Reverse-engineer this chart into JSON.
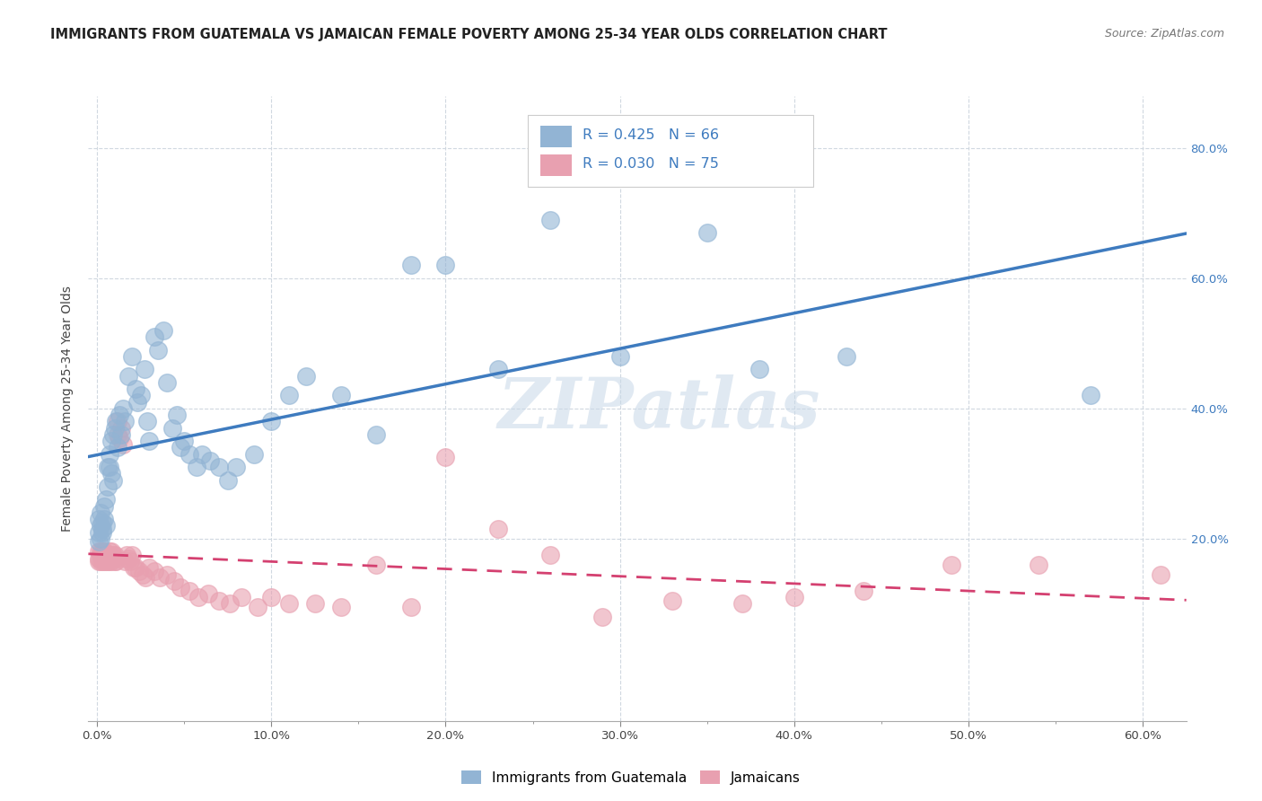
{
  "title": "IMMIGRANTS FROM GUATEMALA VS JAMAICAN FEMALE POVERTY AMONG 25-34 YEAR OLDS CORRELATION CHART",
  "source": "Source: ZipAtlas.com",
  "xlabel_ticks": [
    "0.0%",
    "",
    "10.0%",
    "",
    "20.0%",
    "",
    "30.0%",
    "",
    "40.0%",
    "",
    "50.0%",
    "",
    "60.0%"
  ],
  "xlabel_vals": [
    0.0,
    0.05,
    0.1,
    0.15,
    0.2,
    0.25,
    0.3,
    0.35,
    0.4,
    0.45,
    0.5,
    0.55,
    0.6
  ],
  "ylabel_ticks": [
    "20.0%",
    "40.0%",
    "60.0%",
    "80.0%"
  ],
  "ylabel_vals": [
    0.2,
    0.4,
    0.6,
    0.8
  ],
  "xlim": [
    -0.005,
    0.625
  ],
  "ylim": [
    -0.08,
    0.88
  ],
  "legend_labels": [
    "Immigrants from Guatemala",
    "Jamaicans"
  ],
  "r_guatemala": 0.425,
  "n_guatemala": 66,
  "r_jamaican": 0.03,
  "n_jamaican": 75,
  "blue_color": "#92b4d4",
  "pink_color": "#e8a0b0",
  "trendline_blue": "#3e7bbf",
  "trendline_pink": "#d44070",
  "watermark_color": "#c8d8e8",
  "background_color": "#ffffff",
  "grid_color": "#d0d8e0",
  "title_fontsize": 10.5,
  "source_fontsize": 9,
  "axis_label_fontsize": 10,
  "tick_fontsize": 9.5,
  "guatemala_x": [
    0.001,
    0.001,
    0.001,
    0.002,
    0.002,
    0.002,
    0.003,
    0.003,
    0.003,
    0.004,
    0.004,
    0.005,
    0.005,
    0.006,
    0.006,
    0.007,
    0.007,
    0.008,
    0.008,
    0.009,
    0.009,
    0.01,
    0.011,
    0.012,
    0.013,
    0.014,
    0.015,
    0.016,
    0.018,
    0.02,
    0.022,
    0.023,
    0.025,
    0.027,
    0.029,
    0.03,
    0.033,
    0.035,
    0.038,
    0.04,
    0.043,
    0.046,
    0.048,
    0.05,
    0.053,
    0.057,
    0.06,
    0.065,
    0.07,
    0.075,
    0.08,
    0.09,
    0.1,
    0.11,
    0.12,
    0.14,
    0.16,
    0.18,
    0.2,
    0.23,
    0.26,
    0.3,
    0.35,
    0.38,
    0.43,
    0.57
  ],
  "guatemala_y": [
    0.195,
    0.21,
    0.23,
    0.2,
    0.22,
    0.24,
    0.215,
    0.225,
    0.21,
    0.23,
    0.25,
    0.22,
    0.26,
    0.31,
    0.28,
    0.33,
    0.31,
    0.35,
    0.3,
    0.36,
    0.29,
    0.37,
    0.38,
    0.34,
    0.39,
    0.36,
    0.4,
    0.38,
    0.45,
    0.48,
    0.43,
    0.41,
    0.42,
    0.46,
    0.38,
    0.35,
    0.51,
    0.49,
    0.52,
    0.44,
    0.37,
    0.39,
    0.34,
    0.35,
    0.33,
    0.31,
    0.33,
    0.32,
    0.31,
    0.29,
    0.31,
    0.33,
    0.38,
    0.42,
    0.45,
    0.42,
    0.36,
    0.62,
    0.62,
    0.46,
    0.69,
    0.48,
    0.67,
    0.46,
    0.48,
    0.42
  ],
  "jamaican_x": [
    0.001,
    0.001,
    0.001,
    0.002,
    0.002,
    0.002,
    0.003,
    0.003,
    0.003,
    0.003,
    0.004,
    0.004,
    0.004,
    0.005,
    0.005,
    0.005,
    0.006,
    0.006,
    0.007,
    0.007,
    0.007,
    0.008,
    0.008,
    0.008,
    0.009,
    0.009,
    0.01,
    0.01,
    0.011,
    0.011,
    0.012,
    0.012,
    0.013,
    0.014,
    0.015,
    0.016,
    0.017,
    0.018,
    0.019,
    0.02,
    0.021,
    0.022,
    0.024,
    0.026,
    0.028,
    0.03,
    0.033,
    0.036,
    0.04,
    0.044,
    0.048,
    0.053,
    0.058,
    0.064,
    0.07,
    0.076,
    0.083,
    0.092,
    0.1,
    0.11,
    0.125,
    0.14,
    0.16,
    0.18,
    0.2,
    0.23,
    0.26,
    0.29,
    0.33,
    0.37,
    0.4,
    0.44,
    0.49,
    0.54,
    0.61
  ],
  "jamaican_y": [
    0.17,
    0.165,
    0.18,
    0.175,
    0.165,
    0.18,
    0.17,
    0.175,
    0.165,
    0.18,
    0.175,
    0.165,
    0.18,
    0.17,
    0.175,
    0.165,
    0.175,
    0.165,
    0.175,
    0.165,
    0.18,
    0.17,
    0.165,
    0.18,
    0.17,
    0.175,
    0.165,
    0.175,
    0.17,
    0.165,
    0.38,
    0.36,
    0.355,
    0.37,
    0.345,
    0.165,
    0.175,
    0.17,
    0.165,
    0.175,
    0.155,
    0.155,
    0.15,
    0.145,
    0.14,
    0.155,
    0.15,
    0.14,
    0.145,
    0.135,
    0.125,
    0.12,
    0.11,
    0.115,
    0.105,
    0.1,
    0.11,
    0.095,
    0.11,
    0.1,
    0.1,
    0.095,
    0.16,
    0.095,
    0.325,
    0.215,
    0.175,
    0.08,
    0.105,
    0.1,
    0.11,
    0.12,
    0.16,
    0.16,
    0.145
  ]
}
